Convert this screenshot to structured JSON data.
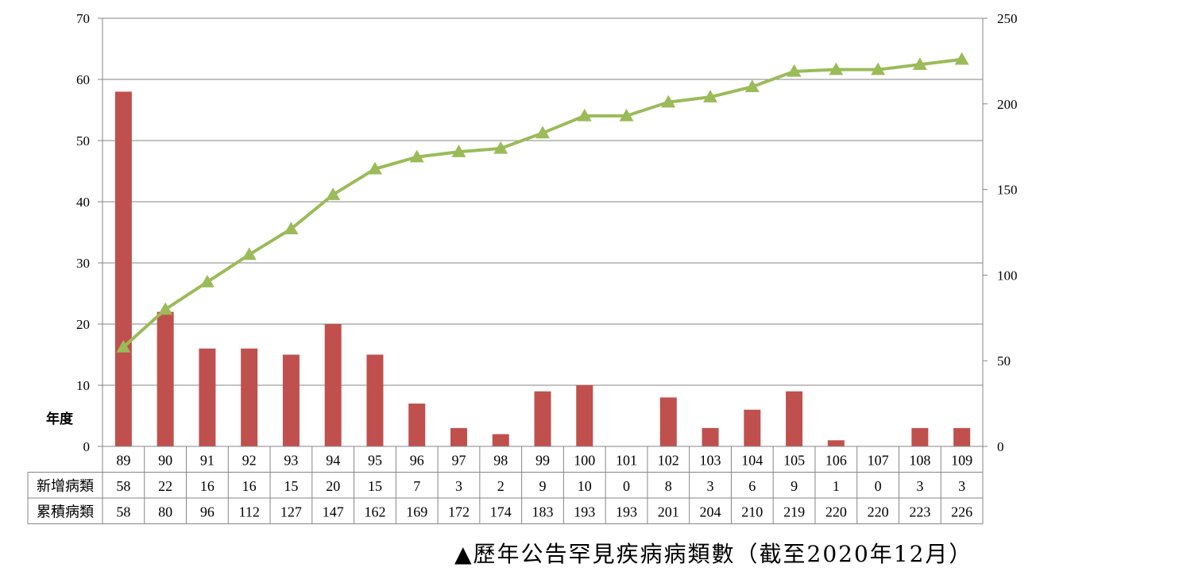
{
  "chart_data": {
    "type": "bar+line",
    "categories": [
      "89",
      "90",
      "91",
      "92",
      "93",
      "94",
      "95",
      "96",
      "97",
      "98",
      "99",
      "100",
      "101",
      "102",
      "103",
      "104",
      "105",
      "106",
      "107",
      "108",
      "109"
    ],
    "series": [
      {
        "name": "新增病類",
        "type": "bar",
        "axis": "left",
        "color": "#c0504d",
        "values": [
          58,
          22,
          16,
          16,
          15,
          20,
          15,
          7,
          3,
          2,
          9,
          10,
          0,
          8,
          3,
          6,
          9,
          1,
          0,
          3,
          3
        ]
      },
      {
        "name": "累積病類",
        "type": "line",
        "axis": "right",
        "color": "#9bbb59",
        "marker": "triangle",
        "values": [
          58,
          80,
          96,
          112,
          127,
          147,
          162,
          169,
          172,
          174,
          183,
          193,
          193,
          201,
          204,
          210,
          219,
          220,
          220,
          223,
          226
        ]
      }
    ],
    "xlabel": "年度",
    "ylim": [
      0,
      70
    ],
    "y2lim": [
      0,
      250
    ],
    "yticks": [
      0,
      10,
      20,
      30,
      40,
      50,
      60,
      70
    ],
    "y2ticks": [
      0,
      50,
      100,
      150,
      200,
      250
    ],
    "grid": true,
    "legend": "data-table",
    "caption": "▲歷年公告罕見疾病病類數（截至2020年12月）"
  }
}
